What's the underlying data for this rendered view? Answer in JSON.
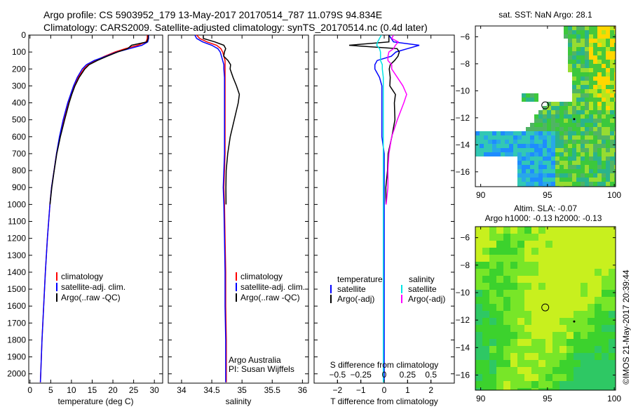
{
  "title": {
    "line1": "Argo profile: CS 5903952_179 13-May-2017 20170514_787 11.079S 94.834E",
    "line2": "Climatology: CARS2009. Satellite-adjusted climatology: synTS_20170514.nc (0.4d later)"
  },
  "credit": "©IMOS 21-May-2017 20:39:44",
  "chart_data": [
    {
      "type": "line",
      "name": "temperature",
      "xlabel": "temperature (deg C)",
      "xlim": [
        -0.3,
        32
      ],
      "ylim": [
        0,
        2055
      ],
      "xticks": [
        0,
        5,
        10,
        15,
        20,
        25,
        30
      ],
      "yticks": [
        0,
        100,
        200,
        300,
        400,
        500,
        600,
        700,
        800,
        900,
        1000,
        1100,
        1200,
        1300,
        1400,
        1500,
        1600,
        1700,
        1800,
        1900,
        2000
      ],
      "depth": [
        0,
        20,
        40,
        60,
        80,
        100,
        125,
        150,
        175,
        200,
        250,
        300,
        350,
        400,
        500,
        600,
        700,
        800,
        900,
        1000,
        1200,
        1400,
        1600,
        1800,
        2000,
        2050
      ],
      "legend": [
        "climatology",
        "satellite-adj. clim.",
        "Argo(..raw -QC)"
      ],
      "series": [
        {
          "name": "climatology",
          "color": "#ff0000",
          "values": [
            28.3,
            28.3,
            28.0,
            26,
            23,
            20.5,
            18,
            15.8,
            14,
            13,
            11.6,
            10.6,
            9.9,
            9.2,
            8.1,
            7.2,
            6.4,
            5.8,
            5.2,
            4.8,
            4.2,
            3.7,
            3.3,
            2.9,
            2.6,
            2.5
          ]
        },
        {
          "name": "satellite-adj. clim.",
          "color": "#0000ff",
          "values": [
            28.6,
            28.6,
            28.4,
            27,
            24,
            21,
            18.3,
            15.5,
            13.6,
            12.6,
            11.4,
            10.5,
            9.8,
            9.1,
            8.0,
            7.1,
            6.4,
            5.8,
            5.2,
            4.8,
            4.2,
            3.7,
            3.3,
            2.9,
            2.6,
            2.5
          ]
        },
        {
          "name": "Argo(..raw -QC)",
          "color": "#000000",
          "values": [
            28.5,
            28.5,
            28.2,
            24.5,
            23.6,
            21.2,
            18.6,
            16.2,
            14.2,
            13.2,
            11.9,
            10.9,
            10.1,
            9.4,
            8.3,
            7.3,
            6.5,
            5.9,
            5.3,
            4.8
          ]
        }
      ]
    },
    {
      "type": "line",
      "name": "salinity",
      "xlabel": "salinity",
      "xlim": [
        33.78,
        36.1
      ],
      "ylim": [
        0,
        2055
      ],
      "xticks": [
        34,
        34.5,
        35,
        35.5,
        36
      ],
      "legend": [
        "climatology",
        "satellite-adj. clim.",
        "Argo(..raw -QC)"
      ],
      "annotation": [
        "Argo Australia",
        "PI: Susan Wijffels"
      ],
      "series": [
        {
          "name": "climatology",
          "color": "#ff0000",
          "values": [
            34.25,
            34.3,
            34.42,
            34.58,
            34.65,
            34.68,
            34.7,
            34.72,
            34.72,
            34.72,
            34.72,
            34.72,
            34.72,
            34.72,
            34.72,
            34.72,
            34.72,
            34.71,
            34.7,
            34.71,
            34.72,
            34.73,
            34.73,
            34.74,
            34.74,
            34.74
          ]
        },
        {
          "name": "satellite-adj. clim.",
          "color": "#0000ff",
          "values": [
            34.22,
            34.25,
            34.35,
            34.5,
            34.6,
            34.64,
            34.66,
            34.68,
            34.7,
            34.7,
            34.71,
            34.71,
            34.71,
            34.71,
            34.71,
            34.71,
            34.71,
            34.7,
            34.69,
            34.7,
            34.71,
            34.72,
            34.72,
            34.73,
            34.73,
            34.73
          ]
        },
        {
          "name": "Argo(..raw -QC)",
          "color": "#000000",
          "values": [
            34.36,
            34.36,
            34.55,
            34.7,
            34.74,
            34.72,
            34.7,
            34.76,
            34.8,
            34.8,
            34.86,
            34.92,
            34.96,
            34.93,
            34.86,
            34.8,
            34.77,
            34.75,
            34.74,
            34.73
          ]
        }
      ]
    },
    {
      "type": "line",
      "name": "difference",
      "xlabel": "T difference from climatology",
      "x2label": "S difference from climatology",
      "xlim": [
        -3,
        3
      ],
      "ylim": [
        0,
        2055
      ],
      "xticks": [
        -2,
        -1,
        0,
        1,
        2
      ],
      "x2ticks": [
        -0.5,
        -0.25,
        0,
        0.25,
        0.5
      ],
      "legend_headers": [
        "temperature",
        "salinity"
      ],
      "legend": [
        "satellite",
        "Argo(-adj)",
        "satellite",
        "Argo(-adj)"
      ],
      "series": [
        {
          "name": "T satellite",
          "unit": "T",
          "color": "#0000ff",
          "values": [
            0.2,
            0.3,
            0.4,
            1.5,
            1.0,
            0.5,
            0.3,
            -0.3,
            -0.4,
            -0.4,
            -0.2,
            -0.1,
            -0.1,
            -0.1,
            -0.1,
            -0.1,
            0,
            0,
            0,
            0,
            0,
            0,
            0,
            0,
            0,
            0
          ]
        },
        {
          "name": "T Argo(-adj)",
          "unit": "T",
          "color": "#000000",
          "values": [
            0.2,
            0.2,
            0.2,
            -1.5,
            0.6,
            0.7,
            0.6,
            0.4,
            0.2,
            0.2,
            0.3,
            0.3,
            0.5,
            0.4,
            0.4,
            0.3,
            0.2,
            0.2,
            0.1,
            0.05
          ]
        },
        {
          "name": "S satellite",
          "unit": "S",
          "color": "#00e5e5",
          "values": [
            -0.03,
            -0.05,
            -0.07,
            -0.08,
            -0.05,
            -0.04,
            -0.04,
            -0.04,
            -0.02,
            -0.02,
            -0.01,
            -0.01,
            -0.01,
            -0.01,
            -0.01,
            -0.01,
            -0.01,
            -0.01,
            -0.01,
            -0.01,
            -0.01,
            -0.01,
            -0.01,
            -0.01,
            -0.01,
            -0.01
          ]
        },
        {
          "name": "S Argo(-adj)",
          "unit": "S",
          "color": "#ff00ff",
          "values": [
            0.1,
            0.08,
            0.15,
            0.12,
            0.1,
            0.05,
            0.04,
            0.04,
            0.08,
            0.08,
            0.14,
            0.2,
            0.24,
            0.21,
            0.14,
            0.08,
            0.05,
            0.04,
            0.04,
            0.02
          ]
        }
      ]
    },
    {
      "type": "heatmap",
      "name": "sst-map",
      "title": "sat. SST: NaN Argo: 28.1",
      "xticks": [
        90,
        95,
        100
      ],
      "yticks": [
        -6,
        -8,
        -10,
        -12,
        -14,
        -16
      ],
      "xlim": [
        89.6,
        100.1
      ],
      "ylim": [
        -17.1,
        -5.2
      ],
      "float_position": [
        94.834,
        -11.079
      ]
    },
    {
      "type": "heatmap",
      "name": "sla-map",
      "title": "Altim. SLA: -0.07",
      "subtitle": "Argo h1000: -0.13 h2000: -0.13",
      "xticks": [
        90,
        95,
        100
      ],
      "yticks": [
        -6,
        -8,
        -10,
        -12,
        -14,
        -16
      ],
      "xlim": [
        89.6,
        100.1
      ],
      "ylim": [
        -17.1,
        -5.2
      ],
      "float_position": [
        94.834,
        -11.079
      ]
    }
  ]
}
